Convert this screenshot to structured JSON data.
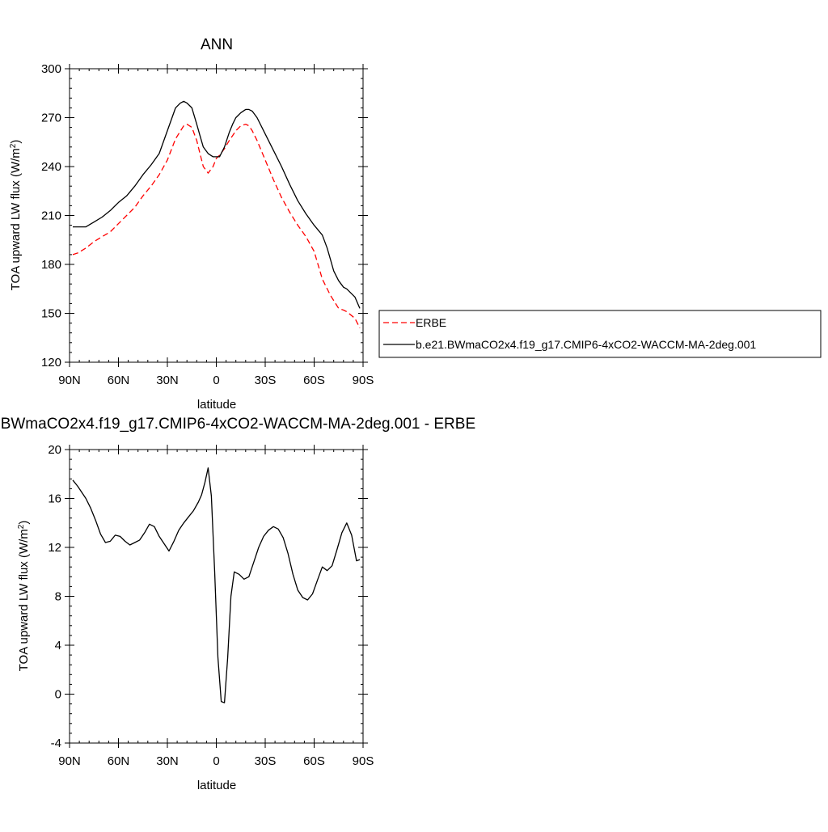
{
  "chart_data": [
    {
      "type": "line",
      "title": "ANN",
      "xlabel": "latitude",
      "ylabel": "TOA upward LW flux (W/m",
      "ylabel_sup": "2",
      "ylabel_close": ")",
      "xlim": [
        90,
        -90
      ],
      "ylim": [
        120,
        300
      ],
      "xticks": [
        90,
        60,
        30,
        0,
        -30,
        -60,
        -90
      ],
      "xtick_labels": [
        "90N",
        "60N",
        "30N",
        "0",
        "30S",
        "60S",
        "90S"
      ],
      "yticks": [
        120,
        150,
        180,
        210,
        240,
        270,
        300
      ],
      "ytick_labels": [
        "120",
        "150",
        "180",
        "210",
        "240",
        "270",
        "300"
      ],
      "grid": false,
      "legend": "right",
      "series": [
        {
          "name": "ERBE",
          "color": "#ff0000",
          "dash": "dashed",
          "x": [
            88,
            85,
            80,
            75,
            70,
            65,
            60,
            55,
            50,
            45,
            40,
            35,
            30,
            25,
            20,
            18,
            15,
            12,
            10,
            8,
            5,
            2,
            0,
            -2,
            -5,
            -8,
            -10,
            -12,
            -15,
            -18,
            -20,
            -22,
            -25,
            -30,
            -35,
            -40,
            -45,
            -50,
            -55,
            -60,
            -65,
            -70,
            -75,
            -78,
            -80,
            -85,
            -88
          ],
          "y": [
            186,
            187,
            190,
            194,
            197,
            200,
            205,
            210,
            215,
            222,
            228,
            235,
            244,
            257,
            265,
            266,
            264,
            256,
            248,
            240,
            236,
            240,
            245,
            247,
            251,
            256,
            259,
            262,
            265,
            266,
            265,
            262,
            256,
            244,
            232,
            221,
            212,
            204,
            197,
            188,
            171,
            161,
            153,
            152,
            151,
            147,
            141
          ]
        },
        {
          "name": "b.e21.BWmaCO2x4.f19_g17.CMIP6-4xCO2-WACCM-MA-2deg.001",
          "color": "#000000",
          "dash": "solid",
          "x": [
            88,
            85,
            80,
            75,
            70,
            65,
            60,
            55,
            50,
            45,
            40,
            35,
            30,
            25,
            22,
            20,
            18,
            15,
            12,
            10,
            8,
            5,
            2,
            -2,
            -5,
            -8,
            -10,
            -12,
            -15,
            -18,
            -20,
            -22,
            -25,
            -30,
            -35,
            -40,
            -45,
            -50,
            -55,
            -60,
            -65,
            -68,
            -70,
            -72,
            -75,
            -78,
            -80,
            -85,
            -88
          ],
          "y": [
            203,
            203,
            203,
            206,
            209,
            213,
            218,
            222,
            228,
            235,
            241,
            248,
            262,
            276,
            279,
            280,
            279,
            276,
            266,
            259,
            252,
            248,
            246,
            246,
            252,
            261,
            266,
            270,
            273,
            275,
            275,
            274,
            270,
            260,
            250,
            240,
            229,
            219,
            211,
            204,
            198,
            190,
            183,
            176,
            170,
            166,
            165,
            160,
            153
          ]
        }
      ]
    },
    {
      "type": "line",
      "title": "b.e21.BWmaCO2x4.f19_g17.CMIP6-4xCO2-WACCM-MA-2deg.001 - ERBE",
      "xlabel": "latitude",
      "ylabel": "TOA upward LW flux (W/m",
      "ylabel_sup": "2",
      "ylabel_close": ")",
      "xlim": [
        90,
        -90
      ],
      "ylim": [
        -4,
        20
      ],
      "xticks": [
        90,
        60,
        30,
        0,
        -30,
        -60,
        -90
      ],
      "xtick_labels": [
        "90N",
        "60N",
        "30N",
        "0",
        "30S",
        "60S",
        "90S"
      ],
      "yticks": [
        -4,
        0,
        4,
        8,
        12,
        16,
        20
      ],
      "ytick_labels": [
        "-4",
        "0",
        "4",
        "8",
        "12",
        "16",
        "20"
      ],
      "grid": false,
      "series": [
        {
          "color": "#000000",
          "dash": "solid",
          "x": [
            88,
            85,
            80,
            77,
            74,
            71,
            68,
            65,
            62,
            59,
            56,
            53,
            50,
            47,
            44,
            41,
            38,
            35,
            32,
            29,
            26,
            23,
            20,
            17,
            14,
            11,
            9,
            7,
            5,
            3,
            1,
            -1,
            -3,
            -5,
            -7,
            -9,
            -11,
            -14,
            -17,
            -20,
            -23,
            -26,
            -29,
            -32,
            -35,
            -38,
            -41,
            -44,
            -47,
            -50,
            -53,
            -56,
            -59,
            -62,
            -65,
            -68,
            -71,
            -74,
            -77,
            -80,
            -83,
            -86,
            -88
          ],
          "y": [
            17.5,
            17.0,
            16.0,
            15.2,
            14.2,
            13.1,
            12.4,
            12.5,
            13.0,
            12.9,
            12.5,
            12.2,
            12.4,
            12.6,
            13.2,
            13.9,
            13.7,
            12.9,
            12.3,
            11.7,
            12.5,
            13.4,
            14.0,
            14.5,
            15.0,
            15.7,
            16.3,
            17.3,
            18.5,
            16.2,
            10.0,
            3.0,
            -0.6,
            -0.7,
            3.0,
            8.0,
            10.0,
            9.8,
            9.4,
            9.6,
            10.8,
            12.0,
            12.9,
            13.4,
            13.7,
            13.5,
            12.8,
            11.5,
            9.8,
            8.5,
            7.9,
            7.7,
            8.2,
            9.3,
            10.4,
            10.1,
            10.5,
            11.8,
            13.2,
            14.0,
            13.0,
            10.9,
            11.0
          ]
        }
      ]
    }
  ]
}
